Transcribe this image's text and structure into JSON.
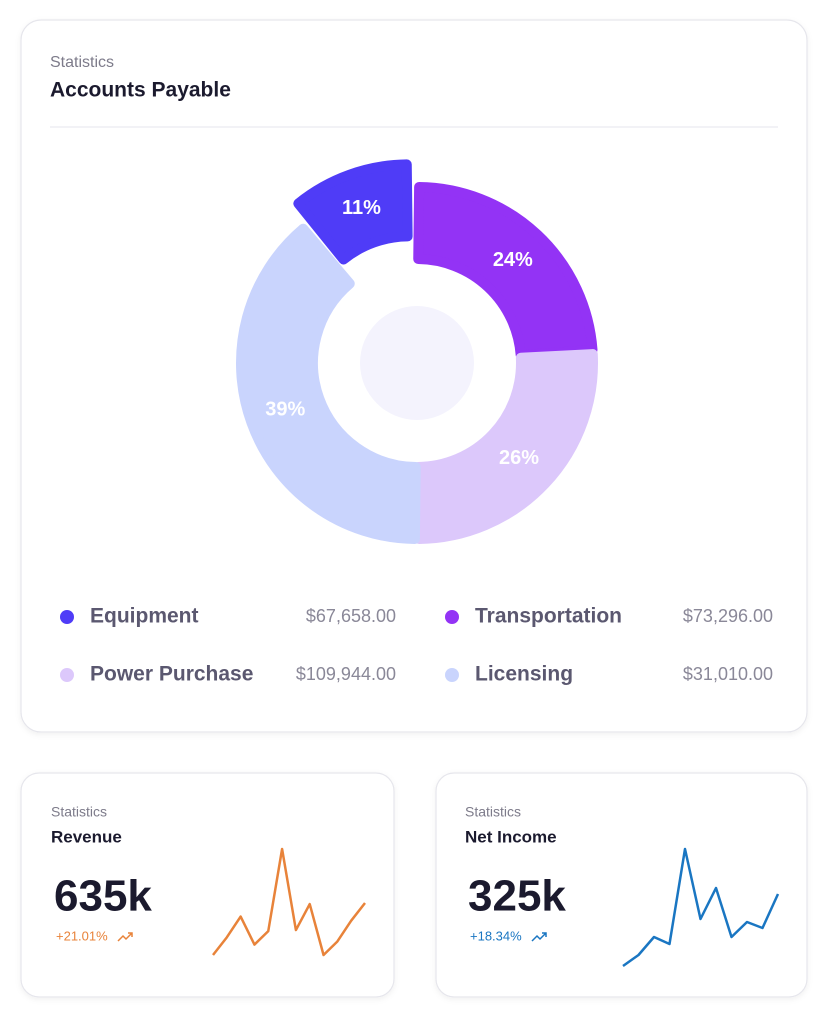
{
  "donut_card": {
    "subtitle": "Statistics",
    "title": "Accounts Payable"
  },
  "chart_data": [
    {
      "type": "donut",
      "categories": [
        "Equipment",
        "Transportation",
        "Power Purchase",
        "Licensing"
      ],
      "values": [
        11,
        24,
        26,
        39
      ],
      "value_labels": [
        "11%",
        "24%",
        "26%",
        "39%"
      ],
      "colors": [
        "#4f3cf7",
        "#9333f5",
        "#dcc8fb",
        "#c9d4fd"
      ],
      "amounts": [
        "$67,658.00",
        "$73,296.00",
        "$109,944.00",
        "$31,010.00"
      ]
    },
    {
      "type": "line",
      "subtitle": "Statistics",
      "title": "Revenue",
      "kpi": "635k",
      "change": "+21.01%",
      "color": "#e8833a",
      "values": [
        0,
        17,
        37,
        10,
        23,
        102,
        24,
        49,
        0,
        13,
        33,
        50
      ]
    },
    {
      "type": "line",
      "subtitle": "Statistics",
      "title": "Net Income",
      "kpi": "325k",
      "change": "+18.34%",
      "color": "#1a76c2",
      "values": [
        0,
        11,
        29,
        22,
        117,
        47,
        78,
        29,
        44,
        38,
        72
      ]
    }
  ]
}
